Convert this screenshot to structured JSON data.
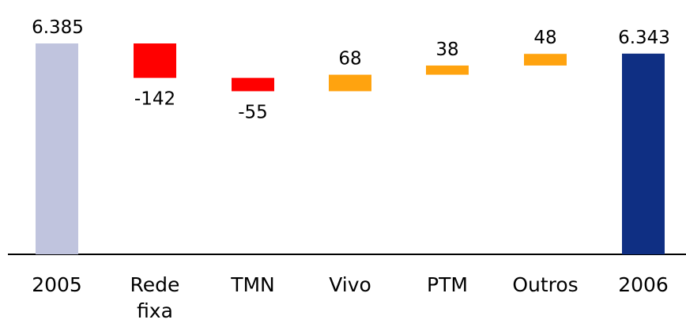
{
  "chart_data": {
    "type": "bar",
    "subtype": "waterfall",
    "title": "",
    "xlabel": "",
    "ylabel": "",
    "categories": [
      "2005",
      "Rede fixa",
      "TMN",
      "Vivo",
      "PTM",
      "Outros",
      "2006"
    ],
    "category_lines": [
      [
        "2005"
      ],
      [
        "Rede",
        "fixa"
      ],
      [
        "TMN"
      ],
      [
        "Vivo"
      ],
      [
        "PTM"
      ],
      [
        "Outros"
      ],
      [
        "2006"
      ]
    ],
    "values": [
      6385,
      -142,
      -55,
      68,
      38,
      48,
      6343
    ],
    "labels": [
      "6.385",
      "-142",
      "-55",
      "68",
      "38",
      "48",
      "6.343"
    ],
    "kinds": [
      "total",
      "delta",
      "delta",
      "delta",
      "delta",
      "delta",
      "total"
    ],
    "axis_break": true,
    "grid": false,
    "colors": {
      "start_total": "#c0c4de",
      "end_total": "#0f2f83",
      "decrease": "#ff0000",
      "increase": "#ffa30f",
      "axis": "#000000"
    }
  }
}
